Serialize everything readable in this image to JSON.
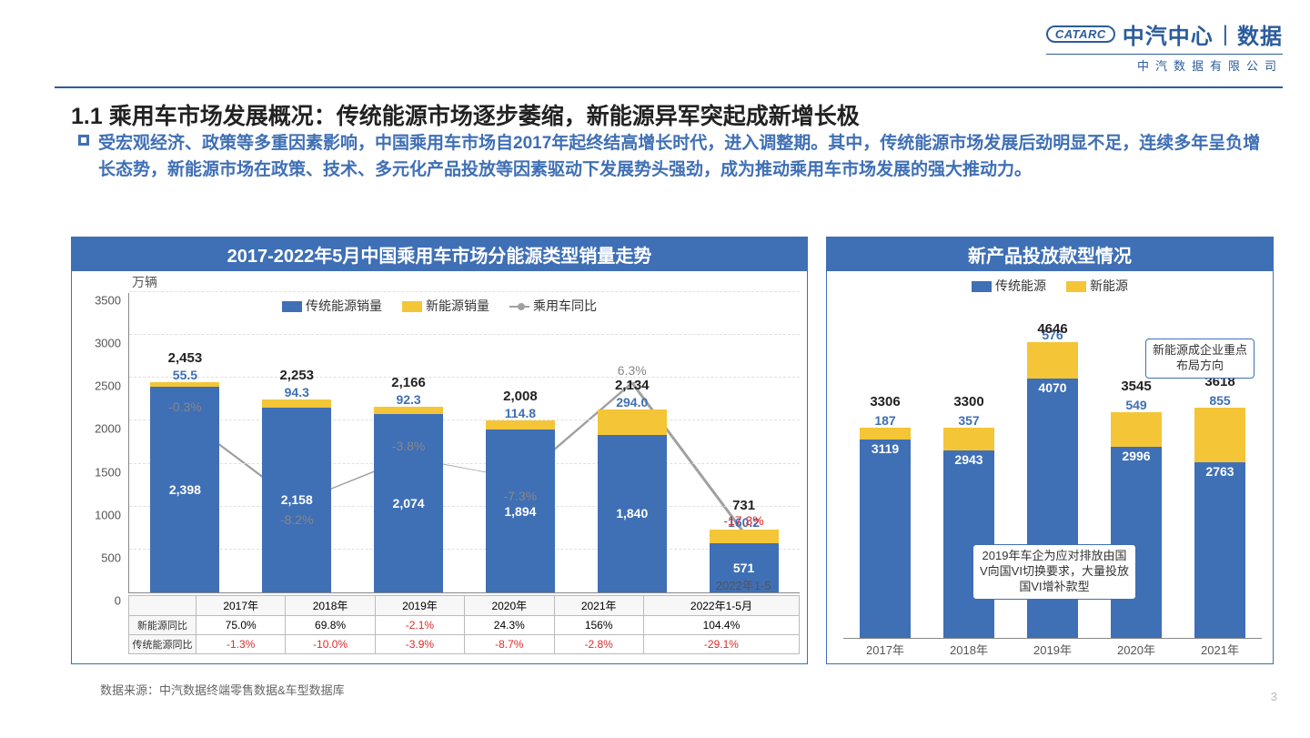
{
  "header": {
    "pill": "CATARC",
    "brand_left": "中汽中心",
    "brand_right": "数据",
    "sub": "中汽数据有限公司"
  },
  "title_section": "1.1 乘用车市场发展概况：传统能源市场逐步萎缩，新能源异军突起成新增长极",
  "description": "受宏观经济、政策等多重因素影响，中国乘用车市场自2017年起终结高增长时代，进入调整期。其中，传统能源市场发展后劲明显不足，连续多年呈负增长态势，新能源市场在政策、技术、多元化产品投放等因素驱动下发展势头强劲，成为推动乘用车市场发展的强大推动力。",
  "left_chart": {
    "title": "2017-2022年5月中国乘用车市场分能源类型销量走势",
    "yaxis_label": "万辆",
    "yticks": [
      0,
      500,
      1000,
      1500,
      2000,
      2500,
      3000,
      3500
    ],
    "ylim_max": 3500,
    "legend": {
      "blue": "传统能源销量",
      "yellow": "新能源销量",
      "gray": "乘用车同比"
    },
    "categories": [
      "2017年",
      "2018年",
      "2019年",
      "2020年",
      "2021年",
      "2022年1-5月"
    ],
    "blue_values": [
      2398,
      2158,
      2074,
      1894,
      1840,
      571
    ],
    "blue_labels": [
      "2,398",
      "2,158",
      "2,074",
      "1,894",
      "1,840",
      "571"
    ],
    "yellow_values": [
      55.5,
      94.3,
      92.3,
      114.8,
      294.0,
      160.2
    ],
    "yellow_labels": [
      "55.5",
      "94.3",
      "92.3",
      "114.8",
      "294.0",
      "160.2"
    ],
    "top_labels": [
      "2,453",
      "2,253",
      "2,166",
      "2,008",
      "2,134",
      "731"
    ],
    "line_labels": [
      "-0.3%",
      "-8.2%",
      "-3.8%",
      "-7.3%",
      "6.3%",
      "-17.3%"
    ],
    "line_rel": [
      0.58,
      0.3,
      0.45,
      0.38,
      0.7,
      0.2
    ],
    "table": {
      "rows": [
        {
          "name": "新能源同比",
          "cells": [
            "75.0%",
            "69.8%",
            "-2.1%",
            "24.3%",
            "156%",
            "104.4%"
          ],
          "neg_flags": [
            false,
            false,
            true,
            false,
            false,
            false
          ]
        },
        {
          "name": "传统能源同比",
          "cells": [
            "-1.3%",
            "-10.0%",
            "-3.9%",
            "-8.7%",
            "-2.8%",
            "-29.1%"
          ],
          "neg_flags": [
            true,
            true,
            true,
            true,
            true,
            true
          ]
        }
      ]
    },
    "last_line_label_neg": true,
    "colors": {
      "blue": "#3f6fb5",
      "yellow": "#f4c537",
      "gray": "#a0a0a0"
    }
  },
  "right_chart": {
    "title": "新产品投放款型情况",
    "legend": {
      "blue": "传统能源",
      "yellow": "新能源"
    },
    "categories": [
      "2017年",
      "2018年",
      "2019年",
      "2020年",
      "2021年"
    ],
    "blue_values": [
      3119,
      2943,
      4070,
      2996,
      2763
    ],
    "yellow_values": [
      187,
      357,
      576,
      549,
      855
    ],
    "top_labels": [
      "3306",
      "3300",
      "4646",
      "3545",
      "3618"
    ],
    "ylim_max": 5000,
    "callout1": "2019年车企为应对排放由国V向国VI切换要求，大量投放国VI增补款型",
    "callout2": "新能源成企业重点布局方向",
    "colors": {
      "blue": "#3f6fb5",
      "yellow": "#f4c537"
    }
  },
  "footnote": "数据来源：中汽数据终端零售数据&车型数据库",
  "page_number": "3"
}
